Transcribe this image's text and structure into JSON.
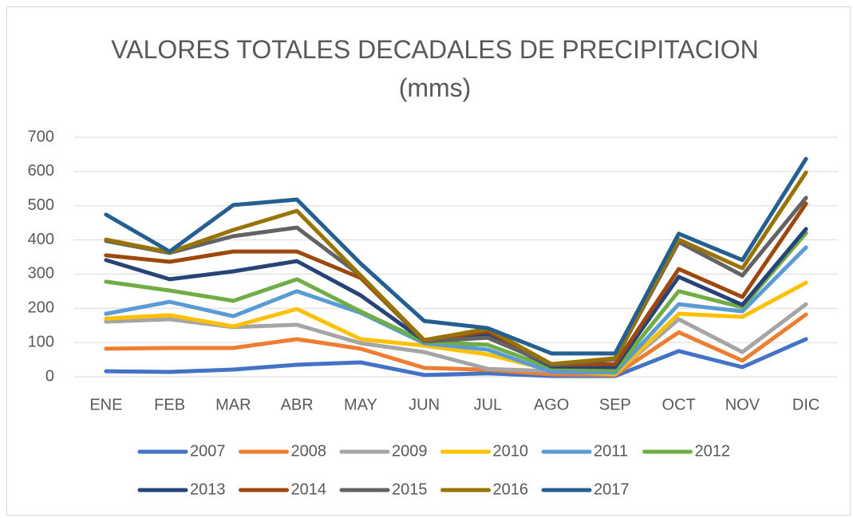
{
  "chart_data": {
    "type": "line",
    "title": "VALORES TOTALES DECADALES DE PRECIPITACION (mms)",
    "categories": [
      "ENE",
      "FEB",
      "MAR",
      "ABR",
      "MAY",
      "JUN",
      "JUL",
      "AGO",
      "SEP",
      "OCT",
      "NOV",
      "DIC"
    ],
    "ylim": [
      0,
      700
    ],
    "yticks": [
      0,
      100,
      200,
      300,
      400,
      500,
      600,
      700
    ],
    "grid": true,
    "legend": "bottom",
    "series": [
      {
        "name": "2007",
        "color": "#4472c4",
        "values": [
          16,
          14,
          21,
          35,
          42,
          5,
          10,
          2,
          2,
          75,
          28,
          110
        ]
      },
      {
        "name": "2008",
        "color": "#ed7d31",
        "values": [
          82,
          84,
          84,
          110,
          82,
          26,
          20,
          7,
          5,
          130,
          47,
          182
        ]
      },
      {
        "name": "2009",
        "color": "#a5a5a5",
        "values": [
          161,
          168,
          145,
          152,
          98,
          72,
          23,
          16,
          9,
          168,
          72,
          212
        ]
      },
      {
        "name": "2010",
        "color": "#ffc000",
        "values": [
          170,
          180,
          147,
          198,
          110,
          91,
          65,
          19,
          7,
          184,
          175,
          275
        ]
      },
      {
        "name": "2011",
        "color": "#5b9bd5",
        "values": [
          184,
          219,
          177,
          250,
          187,
          98,
          79,
          14,
          12,
          212,
          191,
          378
        ]
      },
      {
        "name": "2012",
        "color": "#70ad47",
        "values": [
          278,
          252,
          222,
          285,
          191,
          103,
          93,
          26,
          19,
          250,
          203,
          420
        ]
      },
      {
        "name": "2013",
        "color": "#264478",
        "values": [
          341,
          285,
          308,
          338,
          238,
          105,
          121,
          30,
          28,
          292,
          210,
          432
        ]
      },
      {
        "name": "2014",
        "color": "#9e480e",
        "values": [
          355,
          336,
          366,
          366,
          289,
          105,
          133,
          35,
          37,
          315,
          233,
          506
        ]
      },
      {
        "name": "2015",
        "color": "#636363",
        "values": [
          397,
          362,
          411,
          436,
          296,
          103,
          114,
          35,
          51,
          394,
          296,
          523
        ]
      },
      {
        "name": "2016",
        "color": "#997300",
        "values": [
          401,
          364,
          429,
          485,
          296,
          107,
          140,
          37,
          54,
          401,
          317,
          597
        ]
      },
      {
        "name": "2017",
        "color": "#255e91",
        "values": [
          474,
          366,
          502,
          518,
          331,
          163,
          142,
          68,
          68,
          418,
          341,
          637
        ]
      }
    ]
  }
}
